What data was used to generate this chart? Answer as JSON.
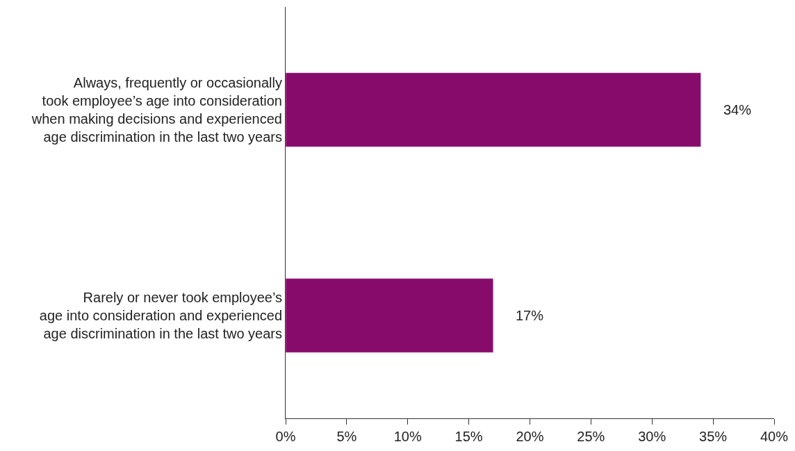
{
  "chart_data": {
    "type": "bar",
    "orientation": "horizontal",
    "categories": [
      "Always, frequently or occasionally\ntook employee’s age into consideration\nwhen making decisions and experienced\nage discrimination in the last two years",
      "Rarely or never took employee’s\nage into consideration and experienced\nage discrimination in the last two years"
    ],
    "values": [
      34,
      17
    ],
    "value_labels": [
      "34%",
      "17%"
    ],
    "color": "#870b6b",
    "xlim": [
      0,
      40
    ],
    "xticks": [
      {
        "value": 0,
        "label": "0%"
      },
      {
        "value": 5,
        "label": "5%"
      },
      {
        "value": 10,
        "label": "10%"
      },
      {
        "value": 15,
        "label": "15%"
      },
      {
        "value": 20,
        "label": "20%"
      },
      {
        "value": 25,
        "label": "25%"
      },
      {
        "value": 30,
        "label": "30%"
      },
      {
        "value": 35,
        "label": "35%"
      },
      {
        "value": 40,
        "label": "40%"
      }
    ],
    "tick_labels": "xy"
  }
}
